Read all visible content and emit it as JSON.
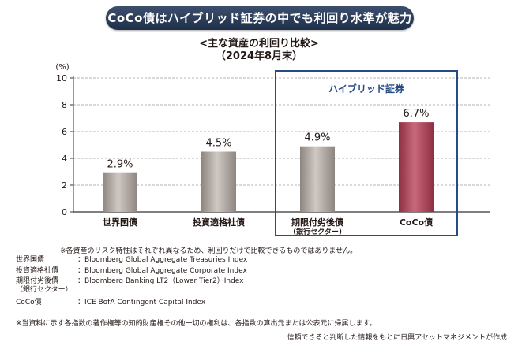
{
  "banner": "CoCo債はハイブリッド証券の中でも利回り水準が魅力",
  "subtitle_line1": "<主な資産の利回り比較>",
  "subtitle_line2": "（2024年8月末）",
  "chart_data": {
    "type": "bar",
    "title": "<主な資産の利回り比較>",
    "subtitle": "（2024年8月末）",
    "unit_label": "(%)",
    "categories": [
      "世界国債",
      "投資適格社債",
      "期限付劣後債",
      "CoCo債"
    ],
    "category_sublabels": [
      "",
      "",
      "(銀行セクター)",
      ""
    ],
    "values": [
      2.9,
      4.5,
      4.9,
      6.7
    ],
    "value_labels": [
      "2.9%",
      "4.5%",
      "4.9%",
      "6.7%"
    ],
    "yticks": [
      "0",
      "2",
      "4",
      "6",
      "8",
      "10"
    ],
    "ylim": [
      0,
      10
    ],
    "grid": true,
    "highlight_box_label": "ハイブリッド証券",
    "highlight_categories": [
      2,
      3
    ],
    "colors": {
      "gray_bar": "#a39b96",
      "coco_bar": "#a64558",
      "highlight_box": "#264b86",
      "grid": "#9e9e9e"
    }
  },
  "note": "※各資産のリスク特性はそれぞれ異なるため、利回りだけで比較できるものではありません。",
  "indices": [
    {
      "term": "世界国債",
      "desc": "：Bloomberg Global Aggregate Treasuries Index"
    },
    {
      "term": "投資適格社債",
      "desc": "：Bloomberg Global Aggregate Corporate Index"
    },
    {
      "term": "期限付劣後債",
      "desc": "：Bloomberg Banking LT2（Lower Tier2）Index"
    },
    {
      "term": "（銀行セクター）",
      "desc": ""
    },
    {
      "term": "CoCo債",
      "desc": "：ICE BofA Contingent Capital Index"
    }
  ],
  "rights_note": "※当資料に示す各指数の著作権等の知的財産権その他一切の権利は、各指数の算出元または公表元に帰属します。",
  "source": "信頼できると判断した情報をもとに日興アセットマネジメントが作成"
}
